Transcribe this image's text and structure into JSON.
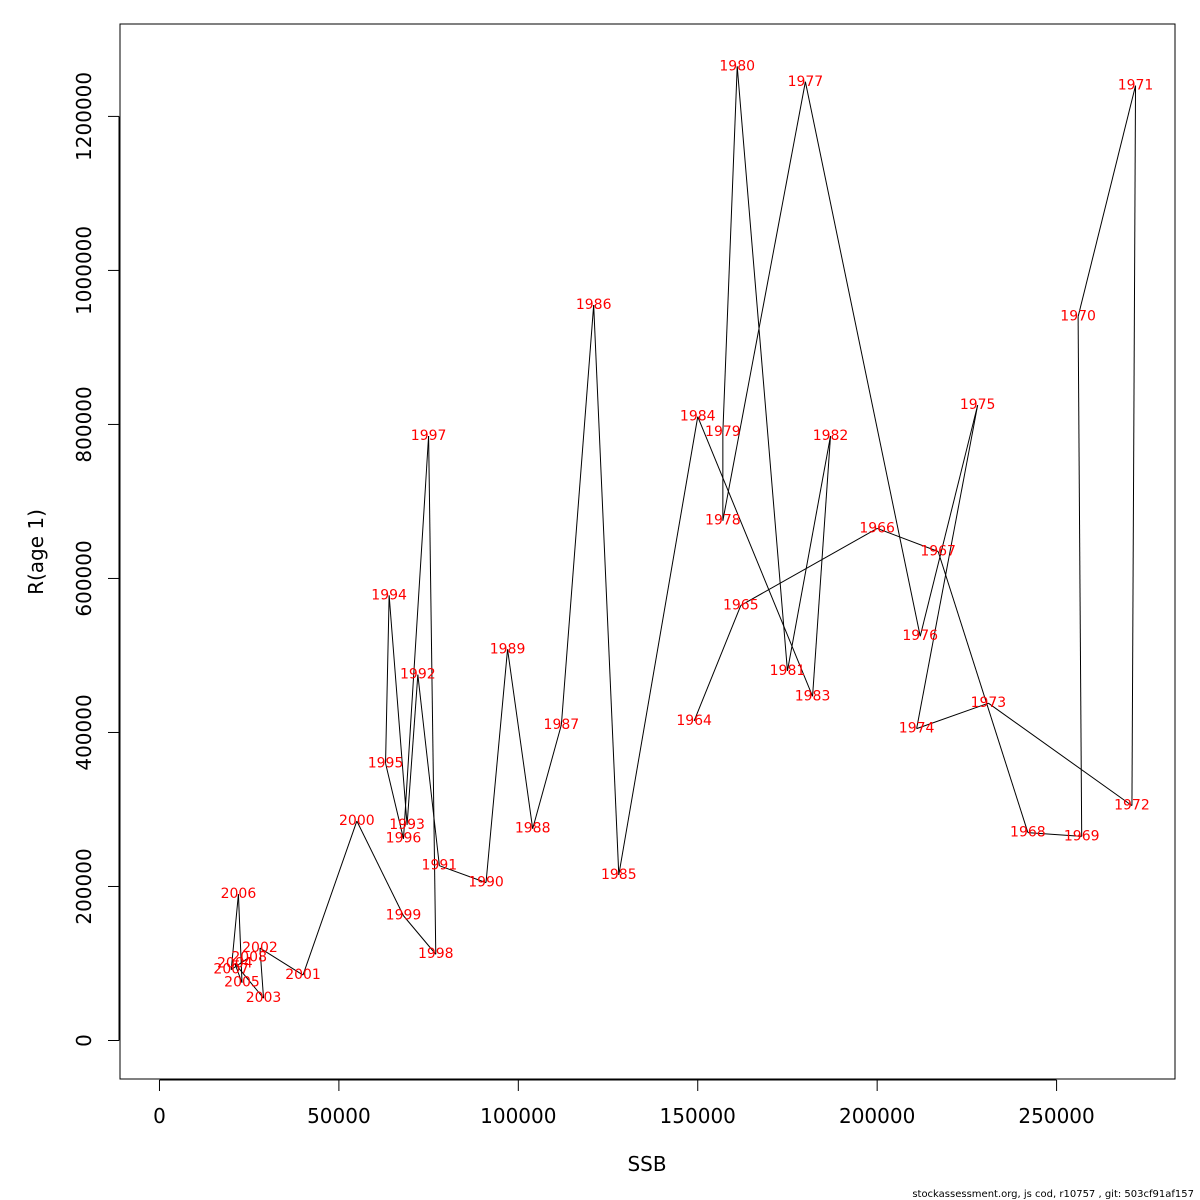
{
  "chart_data": {
    "type": "line",
    "xlabel": "SSB",
    "ylabel": "R(age 1)",
    "xlim": [
      -11000,
      283000
    ],
    "ylim": [
      -50000,
      1320000
    ],
    "xticks": [
      0,
      50000,
      100000,
      150000,
      200000,
      250000
    ],
    "yticks": [
      0,
      200000,
      400000,
      600000,
      800000,
      1000000,
      1200000
    ],
    "grid": false,
    "label_color": "#ff0000",
    "line_color": "#000000",
    "series": [
      {
        "points": [
          {
            "year": "1964",
            "x": 149000,
            "y": 415000
          },
          {
            "year": "1965",
            "x": 162000,
            "y": 565000
          },
          {
            "year": "1966",
            "x": 200000,
            "y": 665000
          },
          {
            "year": "1967",
            "x": 217000,
            "y": 635000
          },
          {
            "year": "1968",
            "x": 242000,
            "y": 270000
          },
          {
            "year": "1969",
            "x": 257000,
            "y": 265000
          },
          {
            "year": "1970",
            "x": 256000,
            "y": 940000
          },
          {
            "year": "1971",
            "x": 272000,
            "y": 1240000
          },
          {
            "year": "1972",
            "x": 271000,
            "y": 305000
          },
          {
            "year": "1973",
            "x": 231000,
            "y": 438000
          },
          {
            "year": "1974",
            "x": 211000,
            "y": 405000
          },
          {
            "year": "1975",
            "x": 228000,
            "y": 825000
          },
          {
            "year": "1976",
            "x": 212000,
            "y": 525000
          },
          {
            "year": "1977",
            "x": 180000,
            "y": 1245000
          },
          {
            "year": "1978",
            "x": 157000,
            "y": 675000
          },
          {
            "year": "1979",
            "x": 157000,
            "y": 790000
          },
          {
            "year": "1980",
            "x": 161000,
            "y": 1265000
          },
          {
            "year": "1981",
            "x": 175000,
            "y": 480000
          },
          {
            "year": "1982",
            "x": 187000,
            "y": 785000
          },
          {
            "year": "1983",
            "x": 182000,
            "y": 447000
          },
          {
            "year": "1984",
            "x": 150000,
            "y": 810000
          },
          {
            "year": "1985",
            "x": 128000,
            "y": 215000
          },
          {
            "year": "1986",
            "x": 121000,
            "y": 955000
          },
          {
            "year": "1987",
            "x": 112000,
            "y": 410000
          },
          {
            "year": "1988",
            "x": 104000,
            "y": 275000
          },
          {
            "year": "1989",
            "x": 97000,
            "y": 508000
          },
          {
            "year": "1990",
            "x": 91000,
            "y": 205000
          },
          {
            "year": "1991",
            "x": 78000,
            "y": 227000
          },
          {
            "year": "1992",
            "x": 72000,
            "y": 475000
          },
          {
            "year": "1993",
            "x": 69000,
            "y": 280000
          },
          {
            "year": "1994",
            "x": 64000,
            "y": 578000
          },
          {
            "year": "1995",
            "x": 63000,
            "y": 360000
          },
          {
            "year": "1996",
            "x": 68000,
            "y": 262000
          },
          {
            "year": "1997",
            "x": 75000,
            "y": 785000
          },
          {
            "year": "1998",
            "x": 77000,
            "y": 112000
          },
          {
            "year": "1999",
            "x": 68000,
            "y": 162000
          },
          {
            "year": "2000",
            "x": 55000,
            "y": 285000
          },
          {
            "year": "2001",
            "x": 40000,
            "y": 85000
          },
          {
            "year": "2002",
            "x": 28000,
            "y": 120000
          },
          {
            "year": "2003",
            "x": 29000,
            "y": 55000
          },
          {
            "year": "2004",
            "x": 21000,
            "y": 100000
          },
          {
            "year": "2005",
            "x": 23000,
            "y": 75000
          },
          {
            "year": "2006",
            "x": 22000,
            "y": 190000
          },
          {
            "year": "2007",
            "x": 20000,
            "y": 92000
          },
          {
            "year": "2008",
            "x": 25000,
            "y": 108000
          }
        ]
      }
    ]
  },
  "footer": "stockassessment.org, js  cod, r10757 , git: 503cf91af157"
}
